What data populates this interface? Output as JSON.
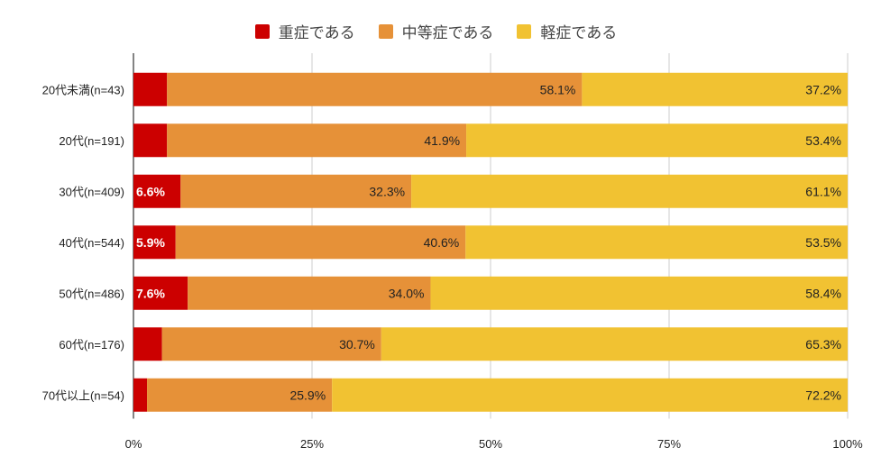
{
  "chart_data": {
    "type": "bar",
    "orientation": "horizontal",
    "stacked": true,
    "categories": [
      "20代未満(n=43)",
      "20代(n=191)",
      "30代(n=409)",
      "40代(n=544)",
      "50代(n=486)",
      "60代(n=176)",
      "70代以上(n=54)"
    ],
    "series": [
      {
        "name": "重症である",
        "color": "#cc0000",
        "values": [
          4.7,
          4.7,
          6.6,
          5.9,
          7.6,
          4.0,
          1.9
        ]
      },
      {
        "name": "中等症である",
        "color": "#e69138",
        "values": [
          58.1,
          41.9,
          32.3,
          40.6,
          34.0,
          30.7,
          25.9
        ]
      },
      {
        "name": "軽症である",
        "color": "#f1c232",
        "values": [
          37.2,
          53.4,
          61.1,
          53.5,
          58.4,
          65.3,
          72.2
        ]
      }
    ],
    "xlim": [
      0,
      100
    ],
    "xticks": [
      "0%",
      "25%",
      "50%",
      "75%",
      "100%"
    ],
    "legend": "top",
    "grid": true
  }
}
